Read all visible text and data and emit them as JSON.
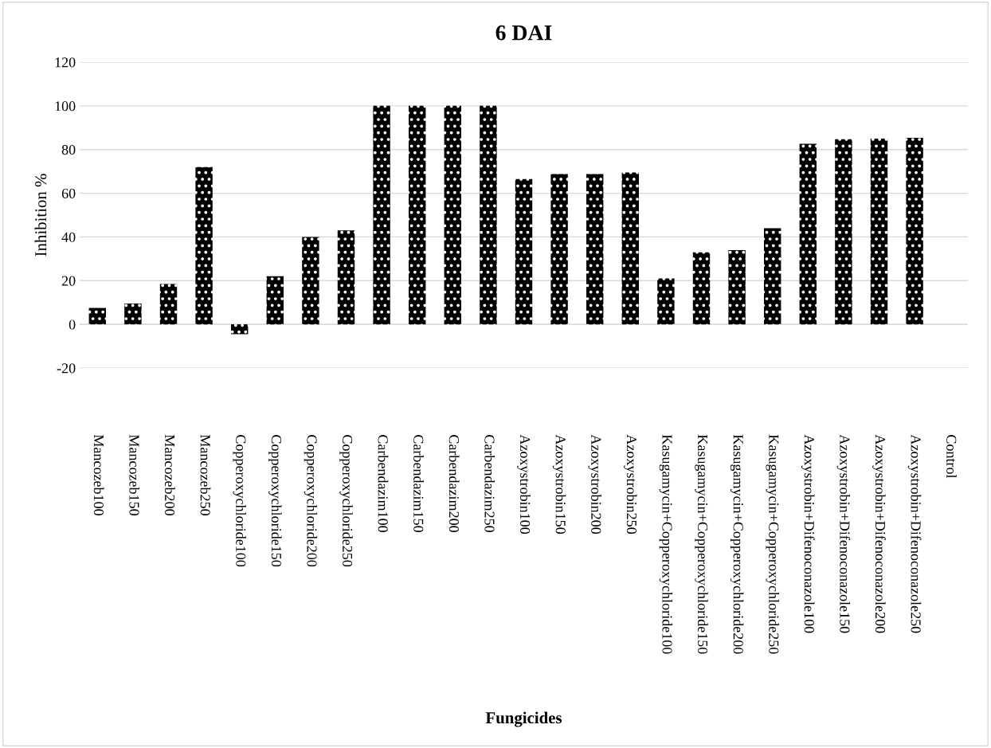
{
  "chart_data": {
    "type": "bar",
    "title": "6 DAI",
    "xlabel": "Fungicides",
    "ylabel": "Inhibition %",
    "categories": [
      "Mancozeb100",
      "Mancozeb150",
      "Mancozeb200",
      "Mancozeb250",
      "Copperoxychloride100",
      "Copperoxychloride150",
      "Copperoxychloride200",
      "Copperoxychloride250",
      "Carbendazim100",
      "Carbendazim150",
      "Carbendazim200",
      "Carbendazim250",
      "Azoxystrobin100",
      "Azoxystrobin150",
      "Azoxystrobin200",
      "Azoxystrobin250",
      "Kasugamycin+Copperoxychloride100",
      "Kasugamycin+Copperoxychloride150",
      "Kasugamycin+Copperoxychloride200",
      "Kasugamycin+Copperoxychloride250",
      "Azoxystrobin+Difenoconazole100",
      "Azoxystrobin+Difenoconazole150",
      "Azoxystrobin+Difenoconazole200",
      "Azoxystrobin+Difenoconazole250",
      "Control"
    ],
    "values": [
      7.5,
      9.5,
      18.5,
      72,
      -4.5,
      22,
      40,
      43,
      100,
      100,
      100,
      100,
      66.5,
      68.8,
      68.8,
      69.5,
      21,
      33,
      34,
      44,
      82.6,
      84.7,
      85,
      85.4,
      0
    ],
    "color": "#000000",
    "ylim": [
      -20,
      120
    ],
    "yticks": [
      -20,
      0,
      20,
      40,
      60,
      80,
      100,
      120
    ],
    "grid": "y",
    "legend": false
  }
}
